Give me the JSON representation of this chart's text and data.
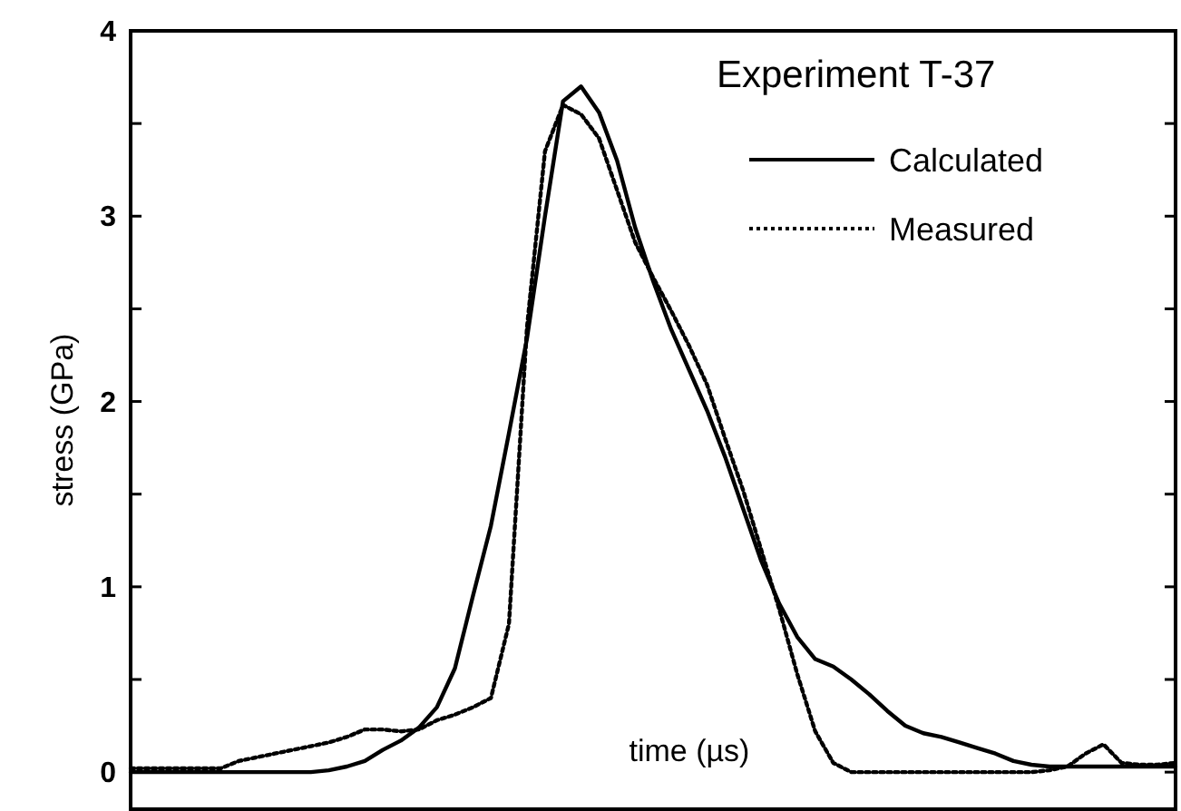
{
  "chart_data": {
    "type": "line",
    "xlabel": "time (µs)",
    "ylabel": "stress (GPa)",
    "legend_title": "Experiment T-37",
    "legend": "top right",
    "grid": false,
    "categories": [
      null,
      null,
      null,
      null,
      null,
      null,
      null,
      null,
      null,
      null,
      null,
      null,
      null,
      null,
      null,
      null,
      null,
      null,
      null,
      null,
      null,
      null,
      null,
      null,
      null,
      null,
      null,
      null,
      null,
      null,
      null,
      null,
      null,
      null,
      null,
      null,
      null,
      null,
      null,
      null,
      null,
      null,
      null,
      null,
      null,
      null,
      null,
      null,
      null,
      null,
      null,
      null,
      null,
      null,
      null,
      null,
      null,
      null,
      null
    ],
    "ylim": [
      -0.2,
      4
    ],
    "yticks": [
      0,
      {
        "value": 0.5,
        "label": null
      },
      1,
      {
        "value": 1.5,
        "label": null
      },
      2,
      {
        "value": 2.5,
        "label": null
      },
      3,
      {
        "value": 3.5,
        "label": null
      },
      4
    ],
    "series": [
      {
        "name": "Calculated",
        "color": "#000000",
        "line_style": "solid",
        "values": [
          0,
          0,
          0,
          0,
          0,
          0,
          0,
          0,
          0,
          0,
          0,
          0.01,
          0.03,
          0.06,
          0.12,
          0.17,
          0.24,
          0.35,
          0.56,
          0.95,
          1.33,
          1.83,
          2.34,
          3.0,
          3.62,
          3.7,
          3.56,
          3.3,
          2.94,
          2.65,
          2.39,
          2.17,
          1.95,
          1.7,
          1.42,
          1.14,
          0.91,
          0.73,
          0.61,
          0.57,
          0.5,
          0.42,
          0.33,
          0.25,
          0.21,
          0.19,
          0.16,
          0.13,
          0.1,
          0.06,
          0.04,
          0.03,
          0.03,
          0.03,
          0.03,
          0.03,
          0.03,
          0.03,
          0.03
        ]
      },
      {
        "name": "Measured",
        "color": "#000000",
        "line_style": "dotted",
        "values": [
          0.02,
          0.02,
          0.02,
          0.02,
          0.02,
          0.02,
          0.06,
          0.08,
          0.1,
          0.12,
          0.14,
          0.16,
          0.19,
          0.23,
          0.23,
          0.22,
          0.23,
          0.28,
          0.31,
          0.35,
          0.4,
          0.8,
          2.4,
          3.35,
          3.6,
          3.55,
          3.42,
          3.14,
          2.86,
          2.67,
          2.49,
          2.3,
          2.09,
          1.8,
          1.52,
          1.2,
          0.88,
          0.53,
          0.22,
          0.05,
          0,
          0,
          0,
          0,
          0,
          0,
          0,
          0,
          0,
          0,
          0,
          0.01,
          0.03,
          0.1,
          0.15,
          0.05,
          0.04,
          0.04,
          0.05
        ]
      }
    ]
  }
}
